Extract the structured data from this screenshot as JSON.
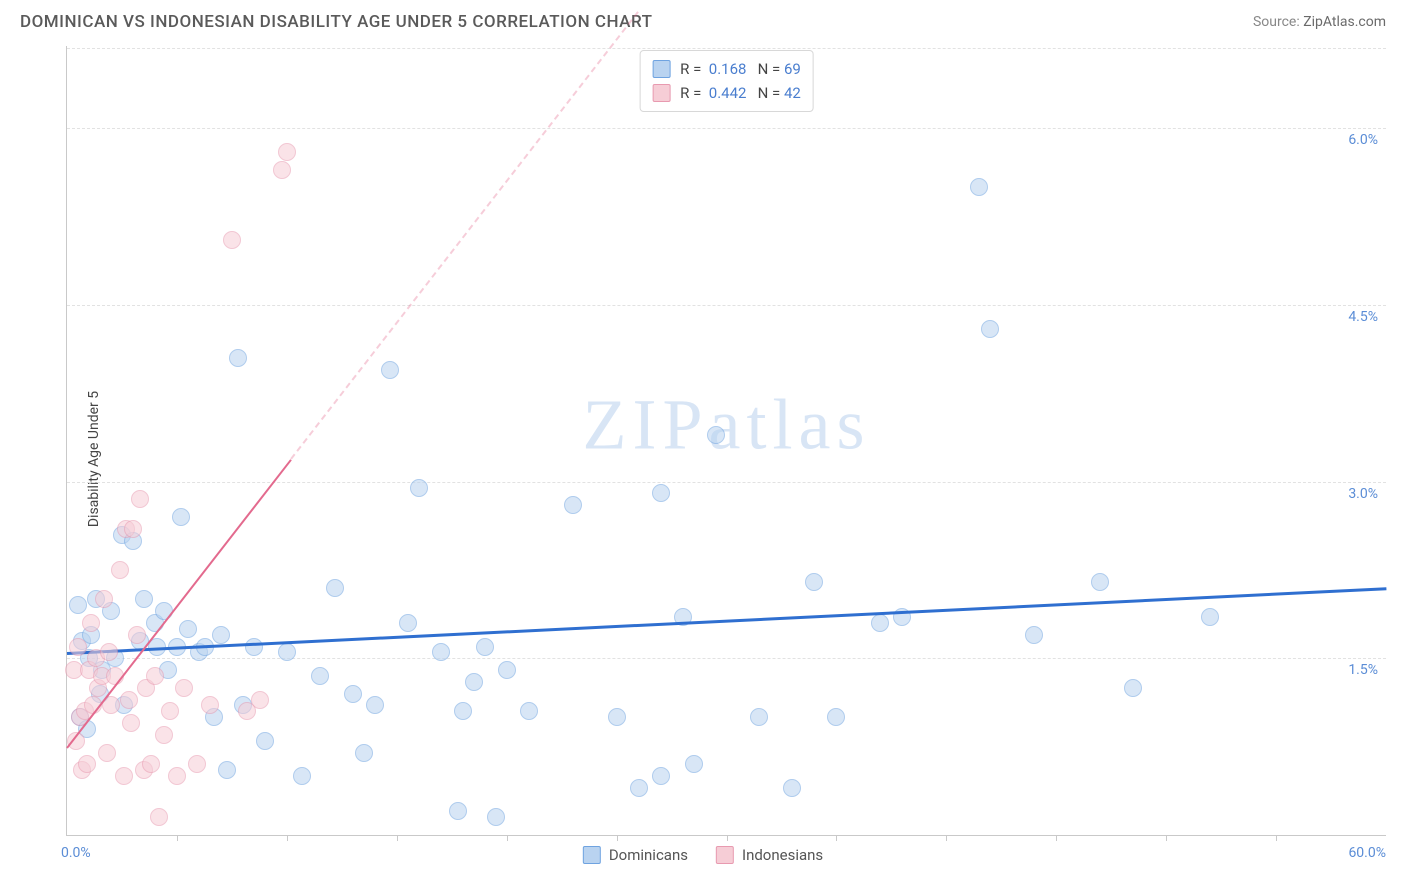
{
  "title": "DOMINICAN VS INDONESIAN DISABILITY AGE UNDER 5 CORRELATION CHART",
  "source_label": "Source: ",
  "source_link": "ZipAtlas.com",
  "ylabel": "Disability Age Under 5",
  "watermark": "ZIPatlas",
  "chart": {
    "type": "scatter",
    "xlim": [
      0,
      60
    ],
    "ylim": [
      0,
      6.7
    ],
    "x_start_label": "0.0%",
    "x_end_label": "60.0%",
    "x_ticks": [
      5,
      10,
      15,
      20,
      25,
      30,
      35,
      40,
      45,
      50,
      55
    ],
    "y_grid": [
      {
        "v": 1.5,
        "label": "1.5%"
      },
      {
        "v": 3.0,
        "label": "3.0%"
      },
      {
        "v": 4.5,
        "label": "4.5%"
      },
      {
        "v": 6.0,
        "label": "6.0%"
      }
    ],
    "background_color": "#ffffff",
    "grid_color": "#e2e2e2",
    "axis_color": "#c9c9c9",
    "tick_label_color": "#5b8dd6",
    "point_radius": 9,
    "point_opacity": 0.55,
    "series": [
      {
        "name": "Dominicans",
        "fill": "#b9d3f0",
        "stroke": "#6fa3e0",
        "trend_color": "#2f6fd0",
        "trend_width": 3,
        "R": "0.168",
        "N": "69",
        "trend": {
          "x1": 0,
          "y1": 1.55,
          "x2": 60,
          "y2": 2.1,
          "dash_after_x": 60
        },
        "points": [
          [
            0.5,
            1.95
          ],
          [
            0.6,
            1.0
          ],
          [
            0.7,
            1.65
          ],
          [
            0.9,
            0.9
          ],
          [
            1.0,
            1.5
          ],
          [
            1.1,
            1.7
          ],
          [
            1.3,
            2.0
          ],
          [
            1.5,
            1.2
          ],
          [
            1.6,
            1.4
          ],
          [
            2.0,
            1.9
          ],
          [
            2.2,
            1.5
          ],
          [
            2.5,
            2.55
          ],
          [
            2.6,
            1.1
          ],
          [
            3.0,
            2.5
          ],
          [
            3.3,
            1.65
          ],
          [
            3.5,
            2.0
          ],
          [
            4.0,
            1.8
          ],
          [
            4.1,
            1.6
          ],
          [
            4.4,
            1.9
          ],
          [
            4.6,
            1.4
          ],
          [
            5.0,
            1.6
          ],
          [
            5.2,
            2.7
          ],
          [
            5.5,
            1.75
          ],
          [
            6.0,
            1.55
          ],
          [
            6.3,
            1.6
          ],
          [
            6.7,
            1.0
          ],
          [
            7.0,
            1.7
          ],
          [
            7.3,
            0.55
          ],
          [
            7.8,
            4.05
          ],
          [
            8.0,
            1.1
          ],
          [
            8.5,
            1.6
          ],
          [
            9.0,
            0.8
          ],
          [
            10.0,
            1.55
          ],
          [
            10.7,
            0.5
          ],
          [
            11.5,
            1.35
          ],
          [
            12.2,
            2.1
          ],
          [
            13.0,
            1.2
          ],
          [
            13.5,
            0.7
          ],
          [
            14.0,
            1.1
          ],
          [
            14.7,
            3.95
          ],
          [
            15.5,
            1.8
          ],
          [
            16.0,
            2.95
          ],
          [
            17.0,
            1.55
          ],
          [
            17.8,
            0.2
          ],
          [
            18.0,
            1.05
          ],
          [
            18.5,
            1.3
          ],
          [
            19.0,
            1.6
          ],
          [
            19.5,
            0.15
          ],
          [
            20.0,
            1.4
          ],
          [
            21.0,
            1.05
          ],
          [
            23.0,
            2.8
          ],
          [
            25.0,
            1.0
          ],
          [
            26.0,
            0.4
          ],
          [
            27.0,
            2.9
          ],
          [
            27.0,
            0.5
          ],
          [
            28.0,
            1.85
          ],
          [
            28.5,
            0.6
          ],
          [
            29.5,
            3.4
          ],
          [
            31.5,
            1.0
          ],
          [
            33.0,
            0.4
          ],
          [
            34.0,
            2.15
          ],
          [
            35.0,
            1.0
          ],
          [
            37.0,
            1.8
          ],
          [
            38.0,
            1.85
          ],
          [
            41.5,
            5.5
          ],
          [
            42.0,
            4.3
          ],
          [
            44.0,
            1.7
          ],
          [
            47.0,
            2.15
          ],
          [
            48.5,
            1.25
          ],
          [
            52.0,
            1.85
          ]
        ]
      },
      {
        "name": "Indonesians",
        "fill": "#f6cdd6",
        "stroke": "#e89ab0",
        "trend_color": "#e36a8e",
        "trend_width": 2,
        "R": "0.442",
        "N": "42",
        "trend": {
          "x1": 0,
          "y1": 0.75,
          "x2": 10.2,
          "y2": 3.2,
          "dash_after_x": 10.2,
          "dash_x2": 26,
          "dash_y2": 7.0
        },
        "points": [
          [
            0.3,
            1.4
          ],
          [
            0.4,
            0.8
          ],
          [
            0.5,
            1.6
          ],
          [
            0.6,
            1.0
          ],
          [
            0.7,
            0.55
          ],
          [
            0.8,
            1.05
          ],
          [
            0.9,
            0.6
          ],
          [
            1.0,
            1.4
          ],
          [
            1.1,
            1.8
          ],
          [
            1.2,
            1.1
          ],
          [
            1.3,
            1.5
          ],
          [
            1.4,
            1.25
          ],
          [
            1.6,
            1.35
          ],
          [
            1.7,
            2.0
          ],
          [
            1.8,
            0.7
          ],
          [
            1.9,
            1.55
          ],
          [
            2.0,
            1.1
          ],
          [
            2.2,
            1.35
          ],
          [
            2.4,
            2.25
          ],
          [
            2.6,
            0.5
          ],
          [
            2.7,
            2.6
          ],
          [
            2.8,
            1.15
          ],
          [
            2.9,
            0.95
          ],
          [
            3.0,
            2.6
          ],
          [
            3.2,
            1.7
          ],
          [
            3.3,
            2.85
          ],
          [
            3.5,
            0.55
          ],
          [
            3.6,
            1.25
          ],
          [
            3.8,
            0.6
          ],
          [
            4.0,
            1.35
          ],
          [
            4.2,
            0.15
          ],
          [
            4.4,
            0.85
          ],
          [
            4.7,
            1.05
          ],
          [
            5.0,
            0.5
          ],
          [
            5.3,
            1.25
          ],
          [
            5.9,
            0.6
          ],
          [
            6.5,
            1.1
          ],
          [
            7.5,
            5.05
          ],
          [
            8.2,
            1.05
          ],
          [
            8.8,
            1.15
          ],
          [
            9.8,
            5.65
          ],
          [
            10.0,
            5.8
          ]
        ]
      }
    ]
  },
  "stat_legend": {
    "R_label": "R =",
    "N_label": "N ="
  }
}
